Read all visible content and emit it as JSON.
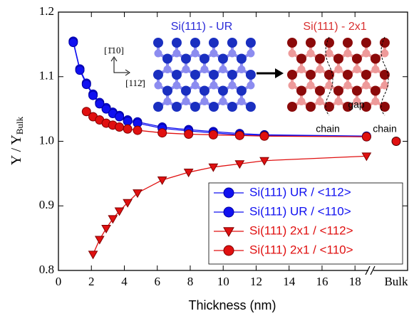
{
  "chart_data": {
    "type": "line",
    "xlabel": "Thickness (nm)",
    "ylabel": "Y / Y",
    "ylabel_sub": "Bulk",
    "xlim": [
      0,
      18.9
    ],
    "ylim": [
      0.8,
      1.2
    ],
    "xticks": [
      0,
      2,
      4,
      6,
      8,
      10,
      12,
      14,
      16,
      18
    ],
    "yticks": [
      0.8,
      0.9,
      {
        "value": 1.0,
        "label": "1.0"
      },
      1.1,
      1.2
    ],
    "bulk_label": "Bulk",
    "bulk_value": 1.0,
    "bulk_color": "#e01010",
    "legend": "lower right",
    "series": [
      {
        "name": "Si(111) UR / <112>",
        "color": "#1010f0",
        "marker": "circle",
        "x": [
          0.9,
          1.3,
          1.7,
          2.1,
          2.5,
          2.9,
          3.3,
          3.7,
          4.2,
          4.8,
          6.3,
          7.9,
          9.4,
          11.0,
          12.5,
          18.7
        ],
        "values": [
          1.155,
          1.112,
          1.09,
          1.073,
          1.06,
          1.052,
          1.045,
          1.04,
          1.033,
          1.03,
          1.022,
          1.018,
          1.015,
          1.012,
          1.01,
          1.008
        ]
      },
      {
        "name": "Si(111) UR / <110>",
        "color": "#1010f0",
        "marker": "circle",
        "x": [
          0.9,
          1.3,
          1.7,
          2.1,
          2.5,
          2.9,
          3.3,
          3.7,
          4.2,
          4.8,
          6.3,
          7.9,
          9.4,
          11.0,
          12.5,
          18.7
        ],
        "values": [
          1.153,
          1.11,
          1.088,
          1.071,
          1.058,
          1.05,
          1.043,
          1.038,
          1.031,
          1.028,
          1.02,
          1.016,
          1.013,
          1.01,
          1.009,
          1.007
        ]
      },
      {
        "name": "Si(111) 2x1 / <112>",
        "color": "#e01010",
        "marker": "triangle",
        "x": [
          2.1,
          2.5,
          2.9,
          3.3,
          3.7,
          4.2,
          4.8,
          6.3,
          7.9,
          9.4,
          11.0,
          12.5,
          18.7
        ],
        "values": [
          0.825,
          0.848,
          0.865,
          0.88,
          0.892,
          0.905,
          0.92,
          0.94,
          0.952,
          0.96,
          0.965,
          0.97,
          0.977
        ]
      },
      {
        "name": "Si(111) 2x1 / <110>",
        "color": "#e01010",
        "marker": "circle",
        "x": [
          1.7,
          2.1,
          2.5,
          2.9,
          3.3,
          3.7,
          4.2,
          4.8,
          6.3,
          7.9,
          9.4,
          11.0,
          12.5,
          18.7
        ],
        "values": [
          1.046,
          1.038,
          1.033,
          1.028,
          1.025,
          1.022,
          1.019,
          1.017,
          1.013,
          1.011,
          1.01,
          1.009,
          1.008,
          1.007
        ]
      }
    ],
    "insets": {
      "ur_title": "Si(111) - UR",
      "ur_color": "#2b2bd8",
      "rec_title": "Si(111) - 2x1",
      "rec_color": "#d83030",
      "dir_y": "[1̄10]",
      "dir_x": "[112̄]",
      "chain_left": "chain",
      "gap": "gap",
      "chain_right": "chain"
    }
  }
}
